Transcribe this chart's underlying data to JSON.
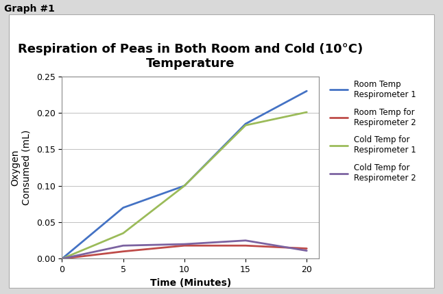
{
  "title": "Respiration of Peas in Both Room and Cold (10°C)\nTemperature",
  "xlabel": "Time (Minutes)",
  "ylabel": "Oxygen\nConsumed (mL)",
  "graph_label": "Graph #1",
  "outer_bg_color": "#d9d9d9",
  "inner_bg_color": "#ffffff",
  "plot_bg_color": "#ffffff",
  "x": [
    0,
    5,
    10,
    15,
    20
  ],
  "series": [
    {
      "label": "Room Temp\nRespirometer 1",
      "color": "#4472C4",
      "values": [
        0,
        0.07,
        0.1,
        0.185,
        0.23
      ]
    },
    {
      "label": "Room Temp for\nRespirometer 2",
      "color": "#BE4B48",
      "values": [
        0,
        0.01,
        0.018,
        0.018,
        0.014
      ]
    },
    {
      "label": "Cold Temp for\nRespirometer 1",
      "color": "#9BBB59",
      "values": [
        0,
        0.035,
        0.1,
        0.183,
        0.201
      ]
    },
    {
      "label": "Cold Temp for\nRespirometer 2",
      "color": "#7B62A0",
      "values": [
        0,
        0.018,
        0.02,
        0.025,
        0.011
      ]
    }
  ],
  "ylim": [
    0,
    0.25
  ],
  "yticks": [
    0,
    0.05,
    0.1,
    0.15,
    0.2,
    0.25
  ],
  "xticks": [
    0,
    5,
    10,
    15,
    20
  ],
  "title_fontsize": 13,
  "axis_label_fontsize": 10,
  "tick_fontsize": 9,
  "legend_fontsize": 8.5,
  "graph_label_fontsize": 10,
  "line_width": 2.0
}
